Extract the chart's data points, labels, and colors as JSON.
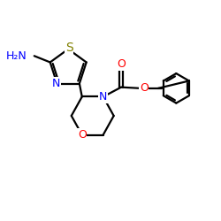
{
  "background": "#ffffff",
  "bond_color": "#000000",
  "N_color": "#0000ff",
  "O_color": "#ff0000",
  "S_color": "#808000",
  "line_width": 1.6,
  "font_size": 9,
  "figsize": [
    2.5,
    2.5
  ],
  "dpi": 100,
  "xlim": [
    0,
    10
  ],
  "ylim": [
    0,
    10
  ]
}
